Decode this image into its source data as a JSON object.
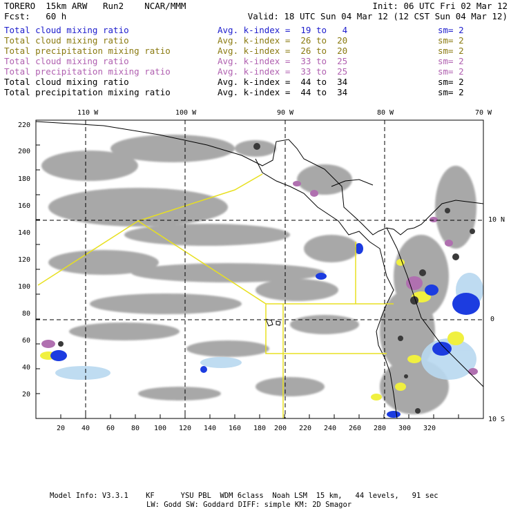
{
  "header": {
    "title": "TORERO  15km ARW   Run2    NCAR/MMM",
    "init": "Init: 06 UTC Fri 02 Mar 12",
    "fcst": "Fcst:   60 h",
    "valid": "Valid: 18 UTC Sun 04 Mar 12 (12 CST Sun 04 Mar 12)"
  },
  "legend": [
    {
      "field": "Total cloud mixing ratio",
      "kindex": "Avg. k-index =  19 to   4",
      "sm": "sm= 2",
      "color": "#1c1ccc"
    },
    {
      "field": "Total cloud mixing ratio",
      "kindex": "Avg. k-index =  26 to  20",
      "sm": "sm= 2",
      "color": "#8a7a10"
    },
    {
      "field": "Total precipitation mixing ratio",
      "kindex": "Avg. k-index =  26 to  20",
      "sm": "sm= 2",
      "color": "#8a7a10"
    },
    {
      "field": "Total cloud mixing ratio",
      "kindex": "Avg. k-index =  33 to  25",
      "sm": "sm= 2",
      "color": "#b060b0"
    },
    {
      "field": "Total precipitation mixing ratio",
      "kindex": "Avg. k-index =  33 to  25",
      "sm": "sm= 2",
      "color": "#b060b0"
    },
    {
      "field": "Total cloud mixing ratio",
      "kindex": "Avg. k-index =  44 to  34",
      "sm": "sm= 2",
      "color": "#000000"
    },
    {
      "field": "Total precipitation mixing ratio",
      "kindex": "Avg. k-index =  44 to  34",
      "sm": "sm= 2",
      "color": "#000000"
    }
  ],
  "axes": {
    "lon_labels": [
      "110 W",
      "100 W",
      "90 W",
      "80 W",
      "70 W"
    ],
    "lat_labels": [
      "10 N",
      "0",
      "10 S"
    ],
    "x_ticks": [
      "20",
      "40",
      "60",
      "80",
      "100",
      "120",
      "140",
      "160",
      "180",
      "200",
      "220",
      "240",
      "260",
      "280",
      "300",
      "320"
    ],
    "y_ticks": [
      "220",
      "200",
      "180",
      "160",
      "140",
      "120",
      "100",
      "80",
      "60",
      "40",
      "20"
    ]
  },
  "footer": {
    "line1": "Model Info: V3.3.1    KF      YSU PBL  WDM 6class  Noah LSM  15 km,   44 levels,   91 sec",
    "line2": "LW: Godd SW: Goddard DIFF: simple KM: 2D Smagor"
  },
  "colors": {
    "cloud_gray": "#9a9a9a",
    "dark_core": "#3a3a3a",
    "blue": "#1c3ce0",
    "light_blue": "#b8d8f0",
    "yellow": "#f0f040",
    "purple": "#b070b0",
    "yellow_line": "#e8e020"
  }
}
